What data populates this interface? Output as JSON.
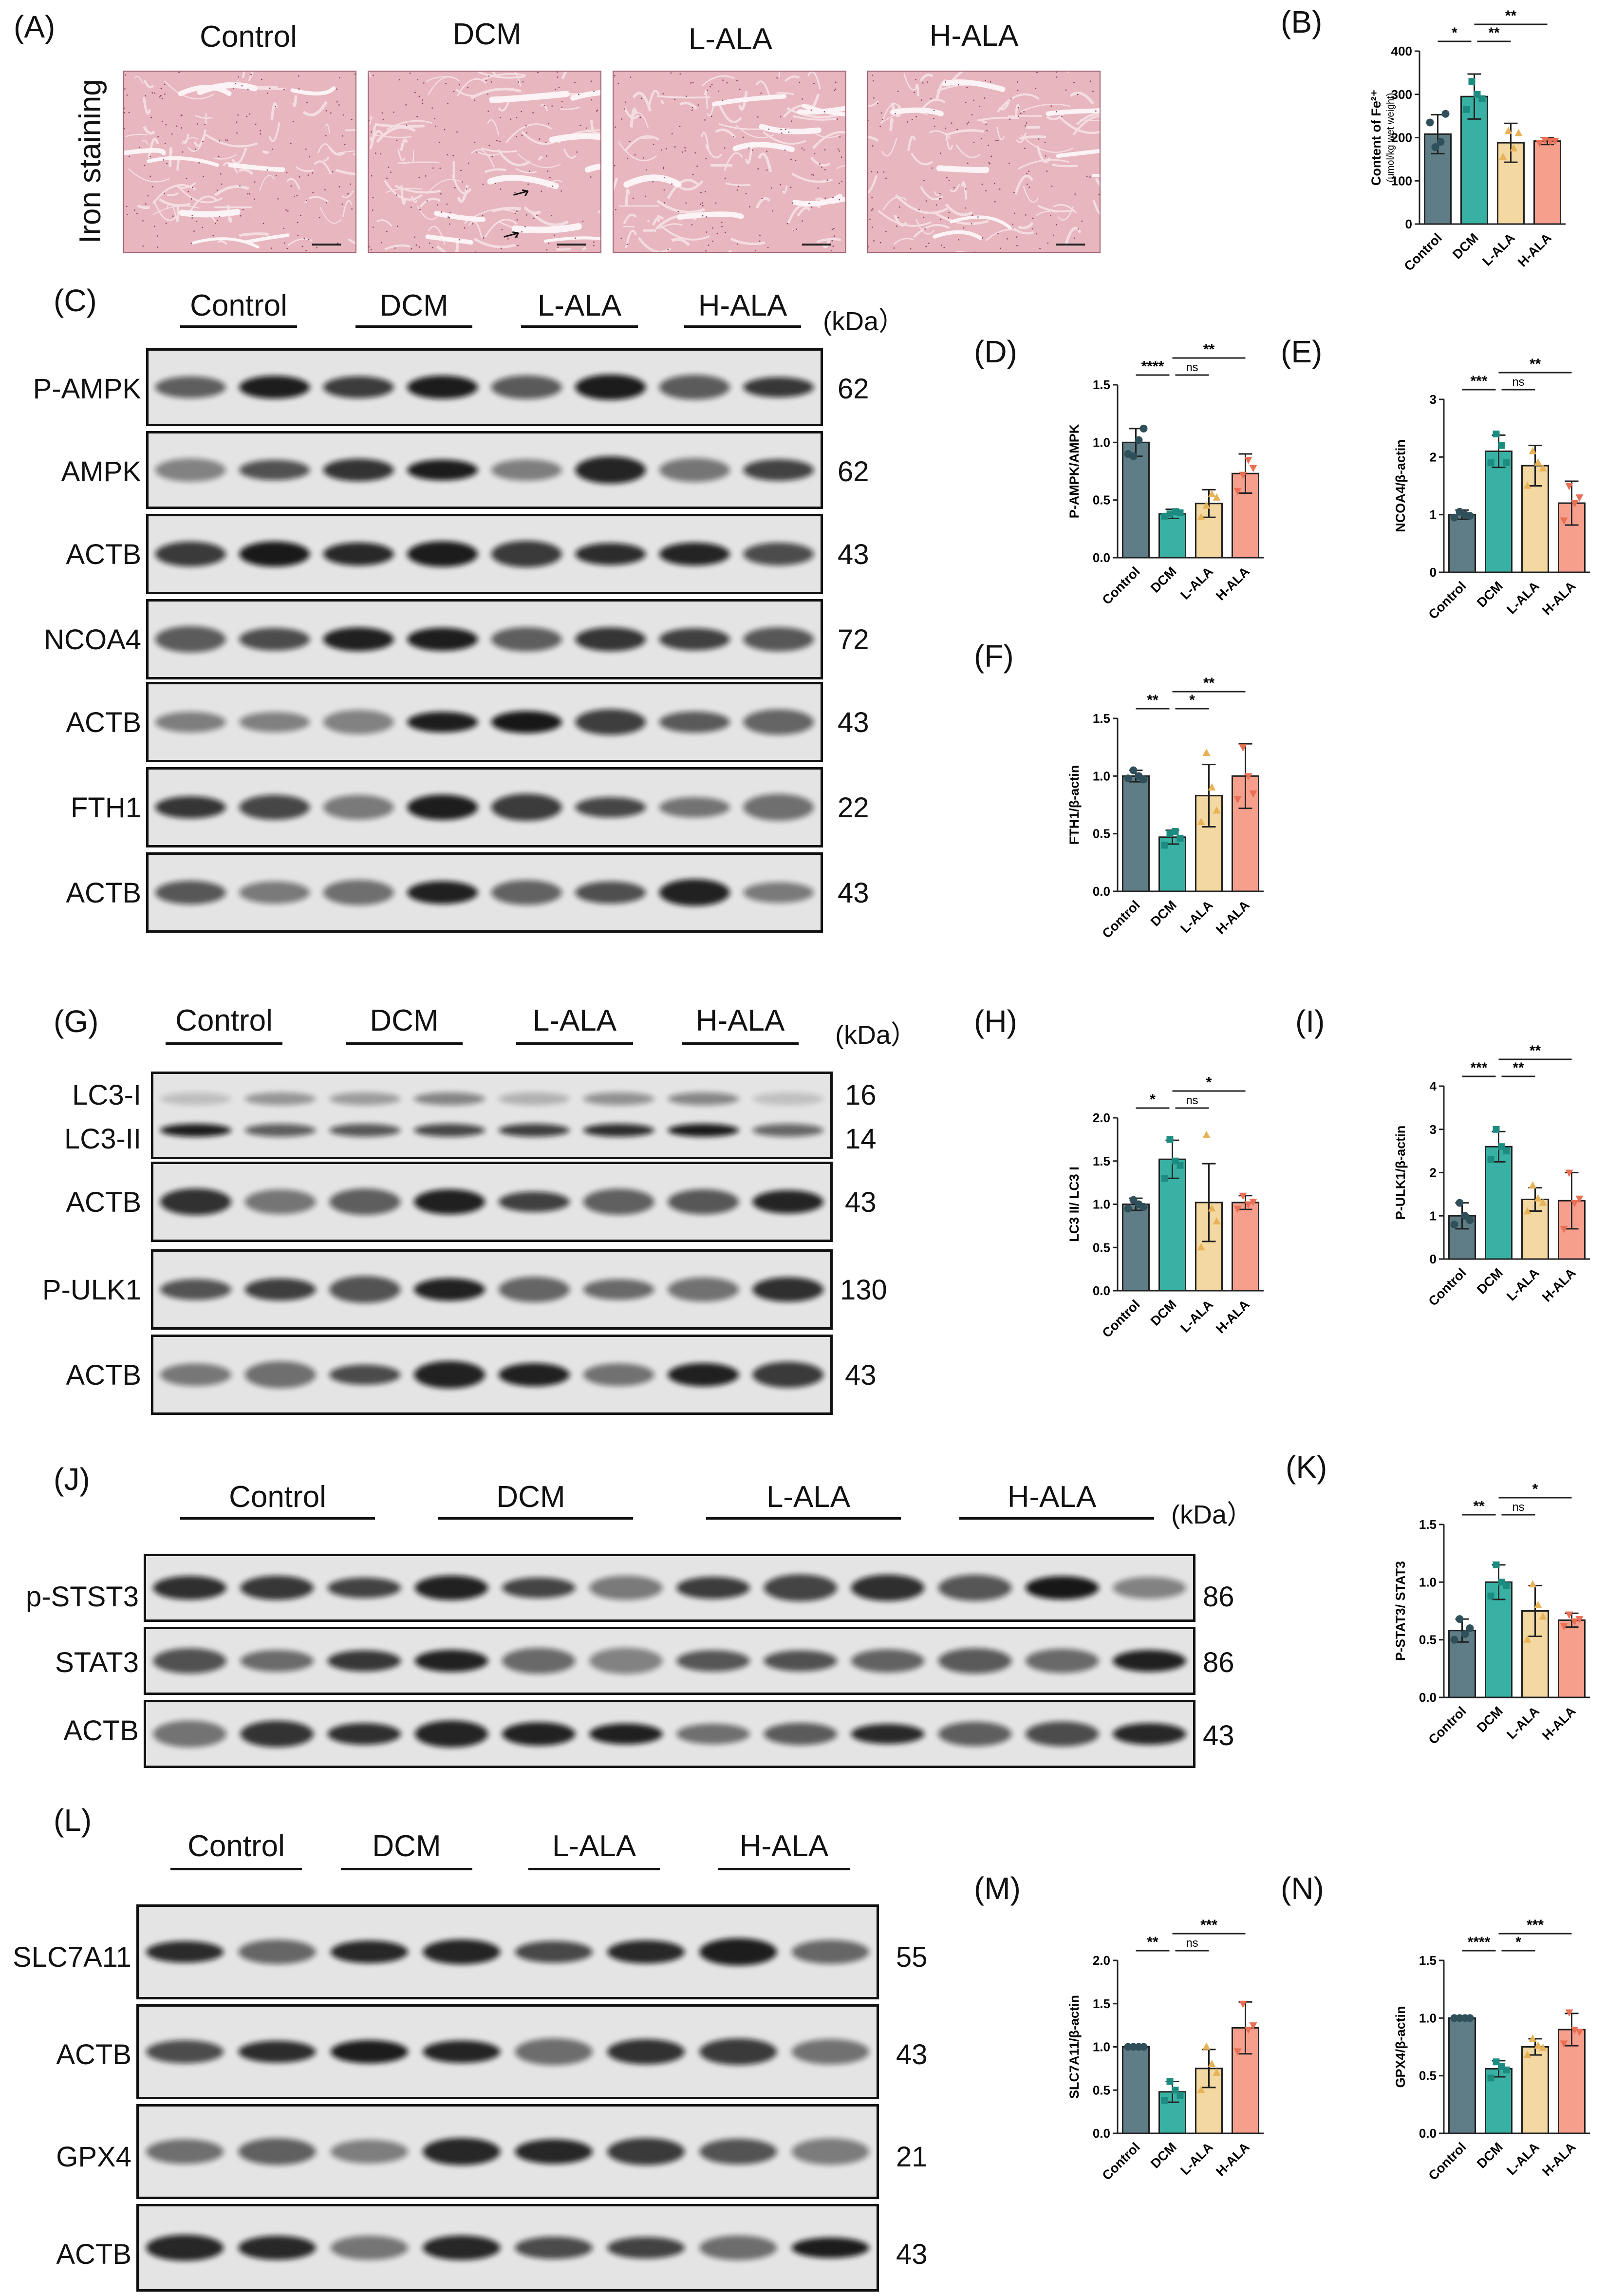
{
  "panels": {
    "A": "(A)",
    "B": "(B)",
    "C": "(C)",
    "D": "(D)",
    "E": "(E)",
    "F": "(F)",
    "G": "(G)",
    "H": "(H)",
    "I": "(I)",
    "J": "(J)",
    "K": "(K)",
    "L": "(L)",
    "M": "(M)",
    "N": "(N)"
  },
  "groups": [
    "Control",
    "DCM",
    "L-ALA",
    "H-ALA"
  ],
  "panelA": {
    "side_label": "Iron staining",
    "headers": [
      "Control",
      "DCM",
      "L-ALA",
      "H-ALA"
    ],
    "image_colors": {
      "tissue": "#e7b6bf",
      "fiber": "#f4dde1",
      "gap": "#fbf3f5"
    }
  },
  "kda_label": "(kDa）",
  "blotC": {
    "rows": [
      {
        "label": "P-AMPK",
        "mw": "62"
      },
      {
        "label": "AMPK",
        "mw": "62"
      },
      {
        "label": "ACTB",
        "mw": "43"
      },
      {
        "label": "NCOA4",
        "mw": "72"
      },
      {
        "label": "ACTB",
        "mw": "43"
      },
      {
        "label": "FTH1",
        "mw": "22"
      },
      {
        "label": "ACTB",
        "mw": "43"
      }
    ]
  },
  "blotG": {
    "rows": [
      {
        "label": "LC3-I",
        "mw": "16"
      },
      {
        "label": "LC3-II",
        "mw": "14"
      },
      {
        "label": "ACTB",
        "mw": "43"
      },
      {
        "label": "P-ULK1",
        "mw": "130"
      },
      {
        "label": "ACTB",
        "mw": "43"
      }
    ]
  },
  "blotJ": {
    "rows": [
      {
        "label": "p-STST3",
        "mw": "86"
      },
      {
        "label": "STAT3",
        "mw": "86"
      },
      {
        "label": "ACTB",
        "mw": "43"
      }
    ]
  },
  "blotL": {
    "rows": [
      {
        "label": "SLC7A11",
        "mw": "55"
      },
      {
        "label": "ACTB",
        "mw": "43"
      },
      {
        "label": "GPX4",
        "mw": "21"
      },
      {
        "label": "ACTB",
        "mw": "43"
      }
    ]
  },
  "chart_colors": [
    "#5e7d86",
    "#38b1a4",
    "#f3d8a2",
    "#f79f8d"
  ],
  "dot_colors": [
    "#2f4f5a",
    "#1d8c80",
    "#e8b358",
    "#e96f55"
  ],
  "chart_data": [
    {
      "id": "B",
      "type": "bar",
      "categories": [
        "Control",
        "DCM",
        "L-ALA",
        "H-ALA"
      ],
      "ylabel": "Content of Fe²⁺",
      "ylabel2": "(μmol/kg wet weight)",
      "ylim": [
        0,
        400
      ],
      "yticks": [
        "0",
        "100",
        "200",
        "300",
        "400"
      ],
      "tickvals": [
        0,
        100,
        200,
        300,
        400
      ],
      "values": [
        208,
        295,
        188,
        192
      ],
      "errors": [
        45,
        52,
        45,
        8
      ],
      "points": [
        [
          235,
          178,
          190,
          255
        ],
        [
          265,
          330,
          300,
          290
        ],
        [
          155,
          215,
          175,
          210
        ],
        [
          188,
          195,
          192,
          193
        ]
      ],
      "sig": [
        {
          "a": 0,
          "b": 1,
          "label": "*",
          "level": 0
        },
        {
          "a": 1,
          "b": 2,
          "label": "**",
          "level": 0
        },
        {
          "a": 1,
          "b": 3,
          "label": "**",
          "level": 1
        }
      ]
    },
    {
      "id": "D",
      "type": "bar",
      "categories": [
        "Control",
        "DCM",
        "L-ALA",
        "H-ALA"
      ],
      "ylabel": "P-AMPK/AMPK",
      "ylim": [
        0,
        1.5
      ],
      "yticks": [
        "0.0",
        "0.5",
        "1.0",
        "1.5"
      ],
      "tickvals": [
        0,
        0.5,
        1.0,
        1.5
      ],
      "values": [
        1.0,
        0.38,
        0.47,
        0.73
      ],
      "errors": [
        0.12,
        0.04,
        0.12,
        0.17
      ],
      "points": [
        [
          0.9,
          0.88,
          1.02,
          1.12
        ],
        [
          0.36,
          0.38,
          0.4,
          0.39
        ],
        [
          0.35,
          0.45,
          0.55,
          0.52
        ],
        [
          0.58,
          0.72,
          0.85,
          0.78
        ]
      ],
      "sig": [
        {
          "a": 0,
          "b": 1,
          "label": "****",
          "level": 0
        },
        {
          "a": 1,
          "b": 2,
          "label": "ns",
          "level": 0
        },
        {
          "a": 1,
          "b": 3,
          "label": "**",
          "level": 1
        }
      ]
    },
    {
      "id": "E",
      "type": "bar",
      "categories": [
        "Control",
        "DCM",
        "L-ALA",
        "H-ALA"
      ],
      "ylabel": "NCOA4/β-actin",
      "ylim": [
        0,
        3
      ],
      "yticks": [
        "0",
        "1",
        "2",
        "3"
      ],
      "tickvals": [
        0,
        1,
        2,
        3
      ],
      "values": [
        1.0,
        2.1,
        1.85,
        1.2
      ],
      "errors": [
        0.08,
        0.28,
        0.35,
        0.38
      ],
      "points": [
        [
          0.95,
          1.05,
          1.0,
          0.98
        ],
        [
          1.9,
          2.4,
          2.2,
          1.9
        ],
        [
          1.5,
          2.1,
          1.9,
          1.8
        ],
        [
          0.9,
          1.5,
          1.2,
          1.3
        ]
      ],
      "sig": [
        {
          "a": 0,
          "b": 1,
          "label": "***",
          "level": 0
        },
        {
          "a": 1,
          "b": 2,
          "label": "ns",
          "level": 0
        },
        {
          "a": 1,
          "b": 3,
          "label": "**",
          "level": 1
        }
      ]
    },
    {
      "id": "F",
      "type": "bar",
      "categories": [
        "Control",
        "DCM",
        "L-ALA",
        "H-ALA"
      ],
      "ylabel": "FTH1/β-actin",
      "ylim": [
        0,
        1.5
      ],
      "yticks": [
        "0.0",
        "0.5",
        "1.0",
        "1.5"
      ],
      "tickvals": [
        0,
        0.5,
        1.0,
        1.5
      ],
      "values": [
        1.0,
        0.47,
        0.83,
        1.0
      ],
      "errors": [
        0.05,
        0.06,
        0.27,
        0.28
      ],
      "points": [
        [
          0.98,
          1.05,
          1.0,
          0.97
        ],
        [
          0.4,
          0.5,
          0.52,
          0.46
        ],
        [
          0.6,
          1.2,
          0.9,
          0.7
        ],
        [
          0.8,
          1.25,
          1.0,
          0.85
        ]
      ],
      "sig": [
        {
          "a": 0,
          "b": 1,
          "label": "**",
          "level": 0
        },
        {
          "a": 1,
          "b": 2,
          "label": "*",
          "level": 0
        },
        {
          "a": 1,
          "b": 3,
          "label": "**",
          "level": 1
        }
      ]
    },
    {
      "id": "H",
      "type": "bar",
      "categories": [
        "Control",
        "DCM",
        "L-ALA",
        "H-ALA"
      ],
      "ylabel": "LC3 II/ LC3 I",
      "ylim": [
        0,
        2.0
      ],
      "yticks": [
        "0.0",
        "0.5",
        "1.0",
        "1.5",
        "2.0"
      ],
      "tickvals": [
        0,
        0.5,
        1.0,
        1.5,
        2.0
      ],
      "values": [
        1.0,
        1.52,
        1.02,
        1.02
      ],
      "errors": [
        0.07,
        0.22,
        0.45,
        0.08
      ],
      "points": [
        [
          0.95,
          1.05,
          1.0,
          0.97
        ],
        [
          1.3,
          1.75,
          1.5,
          1.45
        ],
        [
          0.5,
          1.8,
          0.95,
          0.8
        ],
        [
          0.95,
          1.1,
          1.0,
          1.03
        ]
      ],
      "sig": [
        {
          "a": 0,
          "b": 1,
          "label": "*",
          "level": 0
        },
        {
          "a": 1,
          "b": 2,
          "label": "ns",
          "level": 0
        },
        {
          "a": 1,
          "b": 3,
          "label": "*",
          "level": 1
        }
      ]
    },
    {
      "id": "I",
      "type": "bar",
      "categories": [
        "Control",
        "DCM",
        "L-ALA",
        "H-ALA"
      ],
      "ylabel": "P-ULK1/β-actin",
      "ylim": [
        0,
        4
      ],
      "yticks": [
        "0",
        "1",
        "2",
        "3",
        "4"
      ],
      "tickvals": [
        0,
        1,
        2,
        3,
        4
      ],
      "values": [
        1.0,
        2.6,
        1.38,
        1.35
      ],
      "errors": [
        0.3,
        0.35,
        0.27,
        0.65
      ],
      "points": [
        [
          0.8,
          1.3,
          1.0,
          0.9
        ],
        [
          2.3,
          3.0,
          2.6,
          2.5
        ],
        [
          1.1,
          1.7,
          1.4,
          1.3
        ],
        [
          0.7,
          2.0,
          1.3,
          1.4
        ]
      ],
      "sig": [
        {
          "a": 0,
          "b": 1,
          "label": "***",
          "level": 0
        },
        {
          "a": 1,
          "b": 2,
          "label": "**",
          "level": 0
        },
        {
          "a": 1,
          "b": 3,
          "label": "**",
          "level": 1
        }
      ]
    },
    {
      "id": "K",
      "type": "bar",
      "categories": [
        "Control",
        "DCM",
        "L-ALA",
        "H-ALA"
      ],
      "ylabel": "P-STAT3/ STAT3",
      "ylim": [
        0,
        1.5
      ],
      "yticks": [
        "0.0",
        "0.5",
        "1.0",
        "1.5"
      ],
      "tickvals": [
        0,
        0.5,
        1.0,
        1.5
      ],
      "values": [
        0.58,
        1.0,
        0.75,
        0.67
      ],
      "errors": [
        0.1,
        0.15,
        0.22,
        0.06
      ],
      "points": [
        [
          0.5,
          0.68,
          0.55,
          0.6
        ],
        [
          0.88,
          1.15,
          1.0,
          0.97
        ],
        [
          0.5,
          0.98,
          0.8,
          0.7
        ],
        [
          0.62,
          0.72,
          0.66,
          0.68
        ]
      ],
      "sig": [
        {
          "a": 0,
          "b": 1,
          "label": "**",
          "level": 0
        },
        {
          "a": 1,
          "b": 2,
          "label": "ns",
          "level": 0
        },
        {
          "a": 1,
          "b": 3,
          "label": "*",
          "level": 1
        }
      ]
    },
    {
      "id": "M",
      "type": "bar",
      "categories": [
        "Control",
        "DCM",
        "L-ALA",
        "H-ALA"
      ],
      "ylabel": "SLC7A11/β-actin",
      "ylim": [
        0,
        2.0
      ],
      "yticks": [
        "0.0",
        "0.5",
        "1.0",
        "1.5",
        "2.0"
      ],
      "tickvals": [
        0,
        0.5,
        1.0,
        1.5,
        2.0
      ],
      "values": [
        1.0,
        0.48,
        0.75,
        1.22
      ],
      "errors": [
        0.02,
        0.12,
        0.22,
        0.3
      ],
      "points": [
        [
          1.0,
          1.0,
          1.0,
          1.0
        ],
        [
          0.38,
          0.6,
          0.5,
          0.44
        ],
        [
          0.5,
          1.0,
          0.8,
          0.7
        ],
        [
          0.95,
          1.5,
          1.2,
          1.25
        ]
      ],
      "sig": [
        {
          "a": 0,
          "b": 1,
          "label": "**",
          "level": 0
        },
        {
          "a": 1,
          "b": 2,
          "label": "ns",
          "level": 0
        },
        {
          "a": 1,
          "b": 3,
          "label": "***",
          "level": 1
        }
      ]
    },
    {
      "id": "N",
      "type": "bar",
      "categories": [
        "Control",
        "DCM",
        "L-ALA",
        "H-ALA"
      ],
      "ylabel": "GPX4/β-actin",
      "ylim": [
        0,
        1.5
      ],
      "yticks": [
        "0.0",
        "0.5",
        "1.0",
        "1.5"
      ],
      "tickvals": [
        0,
        0.5,
        1.0,
        1.5
      ],
      "values": [
        1.0,
        0.56,
        0.75,
        0.9
      ],
      "errors": [
        0.01,
        0.07,
        0.07,
        0.14
      ],
      "points": [
        [
          1.0,
          1.0,
          1.0,
          1.0
        ],
        [
          0.48,
          0.62,
          0.58,
          0.55
        ],
        [
          0.68,
          0.82,
          0.76,
          0.74
        ],
        [
          0.78,
          1.05,
          0.9,
          0.88
        ]
      ],
      "sig": [
        {
          "a": 0,
          "b": 1,
          "label": "****",
          "level": 0
        },
        {
          "a": 1,
          "b": 2,
          "label": "*",
          "level": 0
        },
        {
          "a": 1,
          "b": 3,
          "label": "***",
          "level": 1
        }
      ]
    }
  ]
}
